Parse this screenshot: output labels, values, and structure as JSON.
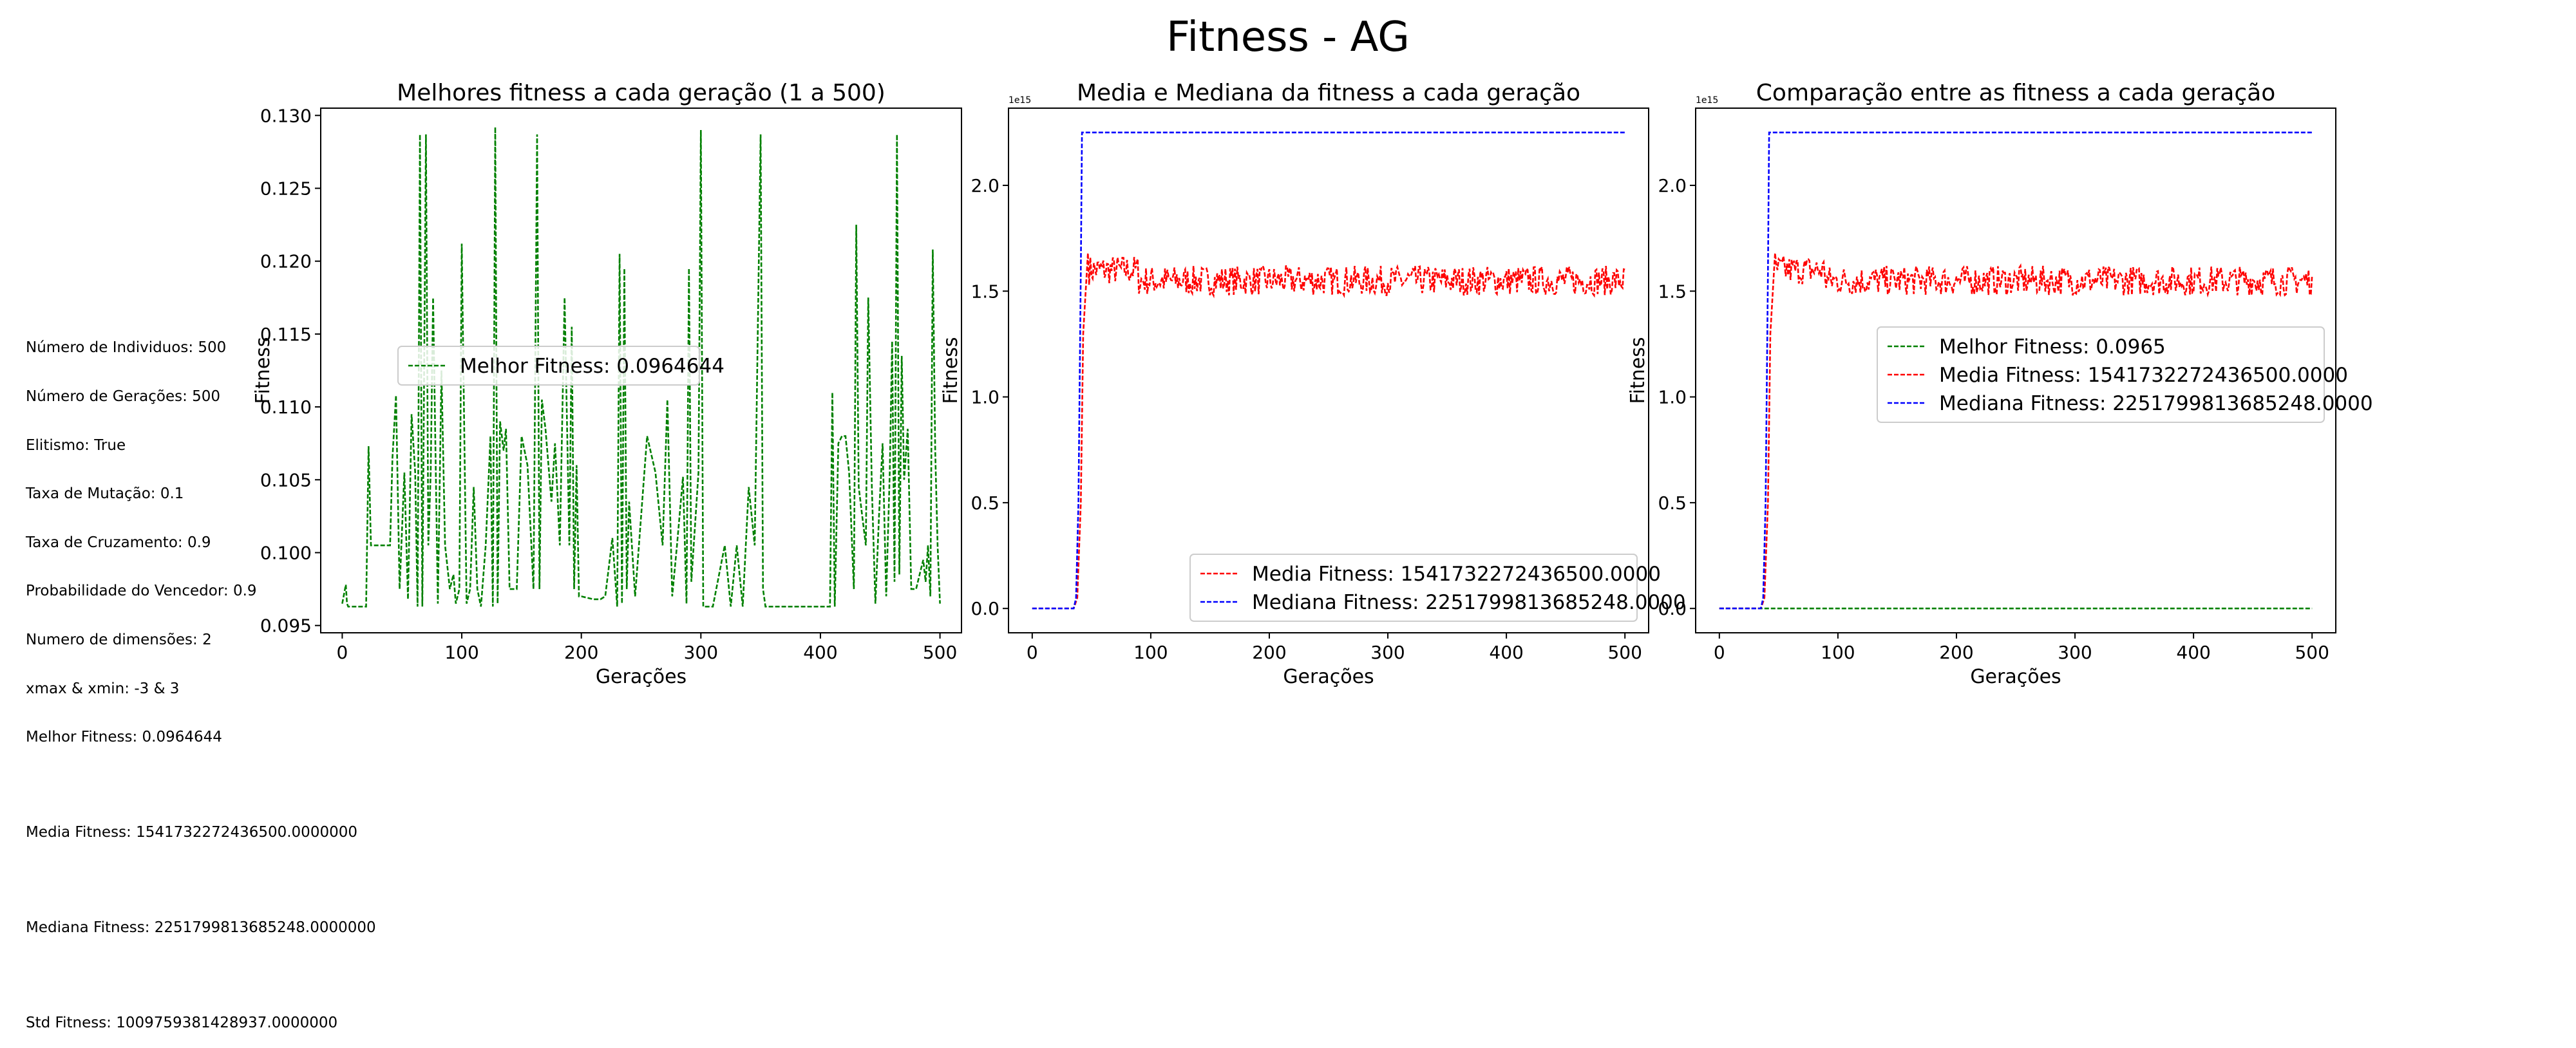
{
  "figure": {
    "title": "Fitness - AG"
  },
  "info": {
    "lines": [
      "Número de Individuos: 500",
      "Número de Gerações: 500",
      "Elitismo: True",
      "Taxa de Mutação: 0.1",
      "Taxa de Cruzamento: 0.9",
      "Probabilidade do Vencedor: 0.9",
      "Numero de dimensões: 2",
      "xmax & xmin: -3 & 3",
      "Melhor Fitness: 0.0964644"
    ],
    "media": "Media Fitness: 1541732272436500.0000000",
    "mediana": "Mediana Fitness: 2251799813685248.0000000",
    "std": "Std Fitness: 1009759381428937.0000000"
  },
  "colors": {
    "best": "#008000",
    "mean": "#ff0000",
    "median": "#0000ff"
  },
  "chart_data": [
    {
      "type": "line",
      "title": "Melhores fitness a cada geração (1 a 500)",
      "xlabel": "Gerações",
      "ylabel": "Fitness",
      "xlim": [
        -18,
        518
      ],
      "ylim": [
        0.0945,
        0.1305
      ],
      "xticks": [
        0,
        100,
        200,
        300,
        400,
        500
      ],
      "yticks": [
        0.095,
        0.1,
        0.105,
        0.11,
        0.115,
        0.12,
        0.125,
        0.13
      ],
      "ytick_labels": [
        "0.095",
        "0.100",
        "0.105",
        "0.110",
        "0.115",
        "0.120",
        "0.125",
        "0.130"
      ],
      "legend_position": "center-left",
      "series": [
        {
          "name": "Melhor Fitness: 0.0964644",
          "color": "#008000",
          "x": [
            0,
            3,
            4,
            5,
            7,
            20,
            22,
            24,
            40,
            42,
            45,
            48,
            52,
            55,
            58,
            61,
            63,
            65,
            67,
            70,
            72,
            74,
            76,
            80,
            83,
            86,
            90,
            93,
            95,
            98,
            100,
            104,
            107,
            110,
            113,
            116,
            120,
            124,
            126,
            128,
            130,
            132,
            135,
            137,
            140,
            146,
            150,
            155,
            160,
            163,
            165,
            167,
            170,
            175,
            178,
            182,
            186,
            190,
            192,
            194,
            196,
            198,
            200,
            210,
            216,
            220,
            226,
            230,
            232,
            234,
            236,
            238,
            240,
            245,
            255,
            262,
            268,
            272,
            276,
            280,
            285,
            288,
            290,
            292,
            298,
            300,
            302,
            306,
            310,
            320,
            325,
            330,
            335,
            340,
            345,
            350,
            352,
            354,
            356,
            358,
            360,
            370,
            380,
            390,
            400,
            405,
            408,
            410,
            412,
            415,
            418,
            421,
            424,
            428,
            430,
            432,
            435,
            438,
            440,
            443,
            446,
            449,
            452,
            455,
            458,
            460,
            462,
            464,
            466,
            468,
            470,
            473,
            476,
            480,
            483,
            486,
            488,
            490,
            492,
            494,
            496,
            498,
            500
          ],
          "y": [
            0.0965,
            0.0978,
            0.0965,
            0.0963,
            0.0963,
            0.0963,
            0.1073,
            0.1005,
            0.1005,
            0.1065,
            0.1108,
            0.0975,
            0.1055,
            0.0968,
            0.1095,
            0.1055,
            0.0963,
            0.1287,
            0.0963,
            0.1287,
            0.1005,
            0.1055,
            0.1175,
            0.0965,
            0.1125,
            0.1005,
            0.0975,
            0.0985,
            0.0965,
            0.0975,
            0.1212,
            0.0965,
            0.0975,
            0.1045,
            0.0975,
            0.0963,
            0.1005,
            0.108,
            0.0963,
            0.1292,
            0.0965,
            0.109,
            0.107,
            0.1085,
            0.0975,
            0.0975,
            0.108,
            0.106,
            0.0975,
            0.1287,
            0.0975,
            0.1105,
            0.1085,
            0.1035,
            0.1075,
            0.1005,
            0.1175,
            0.1005,
            0.1155,
            0.0975,
            0.106,
            0.097,
            0.097,
            0.0968,
            0.0968,
            0.097,
            0.101,
            0.0963,
            0.1205,
            0.0965,
            0.1195,
            0.0975,
            0.1035,
            0.097,
            0.108,
            0.1055,
            0.1005,
            0.1105,
            0.097,
            0.1005,
            0.1052,
            0.0965,
            0.1195,
            0.098,
            0.1055,
            0.129,
            0.0963,
            0.0963,
            0.0963,
            0.1005,
            0.0963,
            0.1005,
            0.0963,
            0.1045,
            0.1005,
            0.1287,
            0.0975,
            0.0963,
            0.0963,
            0.0963,
            0.0963,
            0.0963,
            0.0963,
            0.0963,
            0.0963,
            0.0963,
            0.0963,
            0.111,
            0.0963,
            0.1075,
            0.108,
            0.108,
            0.1055,
            0.0975,
            0.1225,
            0.1045,
            0.1025,
            0.1005,
            0.1175,
            0.1045,
            0.0965,
            0.1025,
            0.1075,
            0.097,
            0.1055,
            0.1145,
            0.098,
            0.1287,
            0.0985,
            0.1135,
            0.105,
            0.1085,
            0.0975,
            0.0975,
            0.0985,
            0.0995,
            0.098,
            0.1005,
            0.097,
            0.1208,
            0.107,
            0.1005,
            0.0965
          ]
        }
      ]
    },
    {
      "type": "line",
      "title": "Media e Mediana da fitness a cada geração",
      "xlabel": "Gerações",
      "ylabel": "Fitness",
      "offset_text": "1e15",
      "xlim": [
        -20,
        520
      ],
      "ylim": [
        -0.115,
        2.365
      ],
      "xticks": [
        0,
        100,
        200,
        300,
        400,
        500
      ],
      "yticks": [
        0.0,
        0.5,
        1.0,
        1.5,
        2.0
      ],
      "ytick_labels": [
        "0.0",
        "0.5",
        "1.0",
        "1.5",
        "2.0"
      ],
      "legend_position": "lower-right",
      "series": [
        {
          "name": "Media Fitness: 1541732272436500.0000",
          "color": "#ff0000",
          "type": "noisy",
          "x": [
            0,
            35,
            38,
            41,
            43,
            47,
            50,
            500
          ],
          "y": [
            0.0,
            0.0,
            0.05,
            0.5,
            1.3,
            1.68,
            1.55,
            1.55
          ],
          "noise_from_x": 48,
          "noise_amplitude": 0.07
        },
        {
          "name": "Mediana Fitness: 2251799813685248.0000",
          "color": "#0000ff",
          "x": [
            0,
            35,
            37,
            39,
            41,
            42,
            500
          ],
          "y": [
            0.0,
            0.0,
            0.05,
            0.5,
            1.6,
            2.25,
            2.25
          ]
        }
      ]
    },
    {
      "type": "line",
      "title": "Comparação entre as fitness a cada geração",
      "xlabel": "Gerações",
      "ylabel": "Fitness",
      "offset_text": "1e15",
      "xlim": [
        -20,
        520
      ],
      "ylim": [
        -0.115,
        2.365
      ],
      "xticks": [
        0,
        100,
        200,
        300,
        400,
        500
      ],
      "yticks": [
        0.0,
        0.5,
        1.0,
        1.5,
        2.0
      ],
      "ytick_labels": [
        "0.0",
        "0.5",
        "1.0",
        "1.5",
        "2.0"
      ],
      "legend_position": "center-right",
      "series": [
        {
          "name": "Melhor Fitness: 0.0965",
          "color": "#008000",
          "x": [
            0,
            500
          ],
          "y": [
            0.0,
            0.0
          ]
        },
        {
          "name": "Media Fitness: 1541732272436500.0000",
          "color": "#ff0000",
          "type": "noisy",
          "x": [
            0,
            35,
            38,
            41,
            43,
            47,
            50,
            500
          ],
          "y": [
            0.0,
            0.0,
            0.05,
            0.5,
            1.3,
            1.68,
            1.55,
            1.55
          ],
          "noise_from_x": 48,
          "noise_amplitude": 0.07
        },
        {
          "name": "Mediana Fitness: 2251799813685248.0000",
          "color": "#0000ff",
          "x": [
            0,
            35,
            37,
            39,
            41,
            42,
            500
          ],
          "y": [
            0.0,
            0.0,
            0.05,
            0.5,
            1.6,
            2.25,
            2.25
          ]
        }
      ]
    }
  ]
}
